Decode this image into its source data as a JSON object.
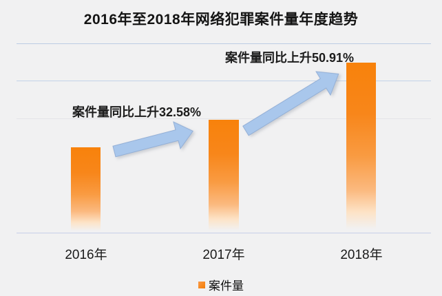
{
  "title": "2016年至2018年网络犯罪案件量年度趋势",
  "chart_data": {
    "type": "bar",
    "title": "2016年至2018年网络犯罪案件量年度趋势",
    "categories": [
      "2016年",
      "2017年",
      "2018年"
    ],
    "series": [
      {
        "name": "案件量",
        "relative_values": [
          1.0,
          1.3258,
          2.0009
        ]
      }
    ],
    "annotations": [
      {
        "target": "2017年",
        "text": "案件量同比上升32.58%"
      },
      {
        "target": "2018年",
        "text": "案件量同比上升50.91%"
      }
    ],
    "yoy_growth": [
      "32.58%",
      "50.91%"
    ],
    "legend": {
      "position": "bottom",
      "entries": [
        "案件量"
      ]
    },
    "grid": true,
    "xlabel": "",
    "ylabel": "",
    "colors": {
      "bar_top": "#f8820b",
      "bar_fade": "#fde3c7",
      "arrow_fill": "#a9c7ec",
      "arrow_edge": "#93afd6",
      "gridline": "#c2d2e8",
      "background": "#f1f1f2",
      "text": "#141414"
    }
  }
}
